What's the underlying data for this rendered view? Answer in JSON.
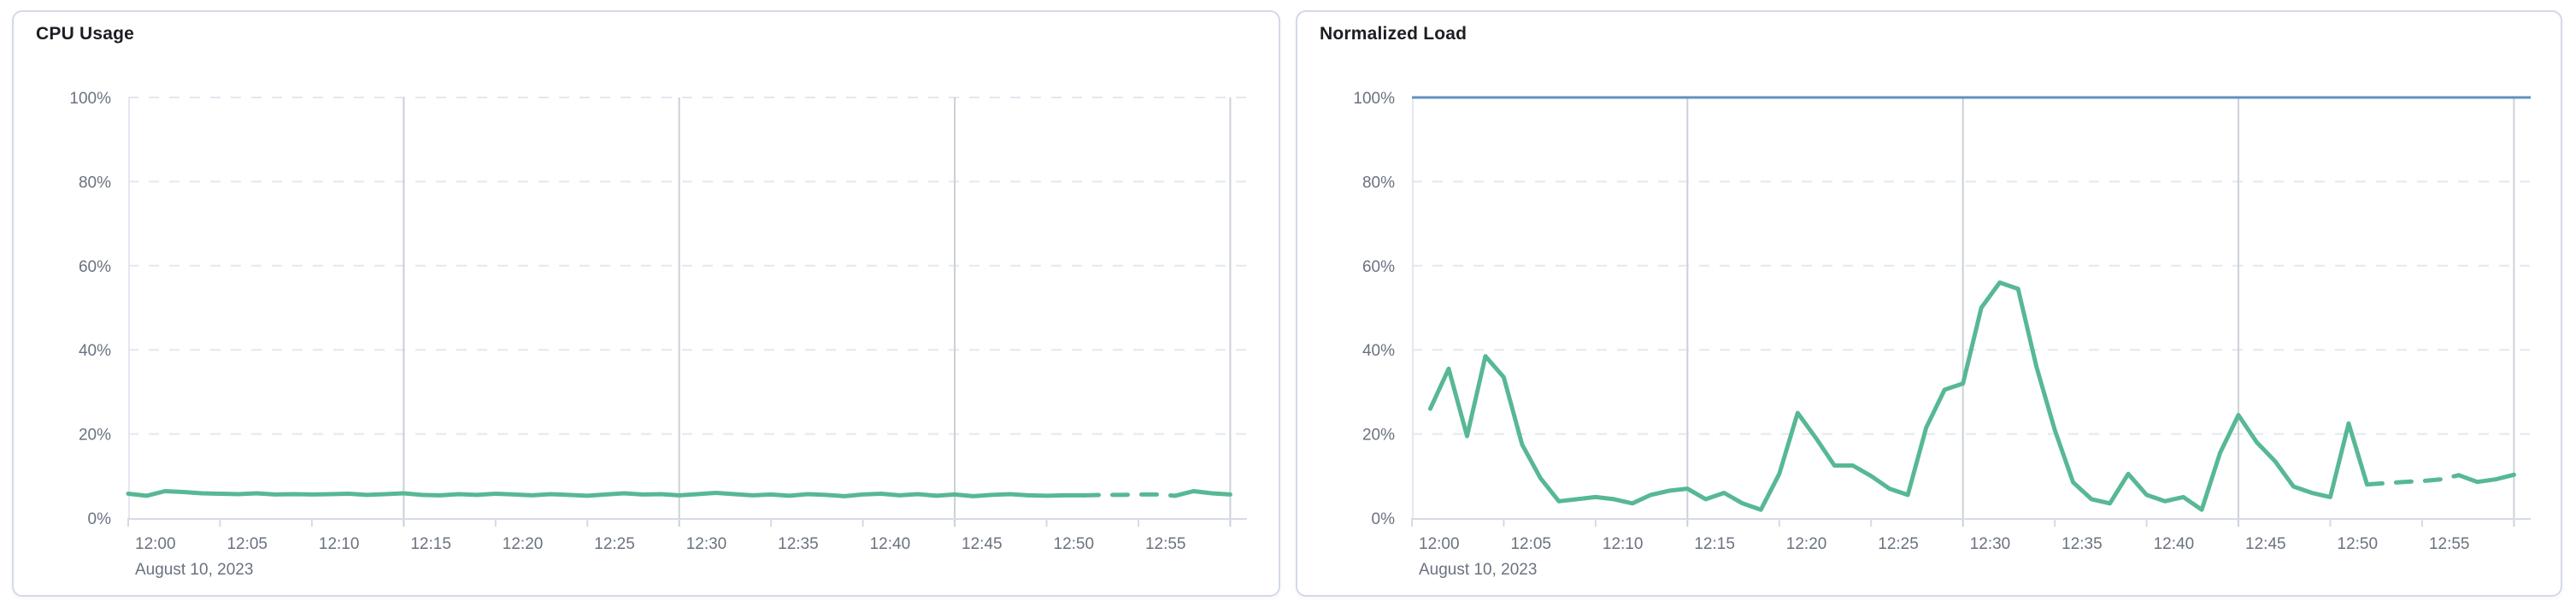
{
  "colors": {
    "page_bg": "#FFFFFF",
    "panel_border": "#D3DAE6",
    "title_text": "#1D1E24",
    "axis_text": "#6A7280",
    "axis_line": "#D6DAE3",
    "grid_light": "#E3E7F1",
    "grid_dark": "#CBD0D9",
    "series_green": "#57B894",
    "threshold_blue": "#6092C0"
  },
  "chart_data": [
    {
      "type": "line",
      "title": "CPU Usage",
      "x": {
        "start": "12:00",
        "end": "13:00",
        "tick_interval_minutes": 5,
        "tick_labels": [
          "12:00",
          "12:05",
          "12:10",
          "12:15",
          "12:20",
          "12:25",
          "12:30",
          "12:35",
          "12:40",
          "12:45",
          "12:50",
          "12:55"
        ],
        "secondary_label": "August 10, 2023",
        "major_gridline_minutes": [
          15,
          30,
          45,
          60
        ]
      },
      "y": {
        "min": 0,
        "max": 100,
        "tick_labels": [
          "0%",
          "20%",
          "40%",
          "60%",
          "80%",
          "100%"
        ],
        "gridlines_percent": [
          20,
          40,
          60,
          80,
          100
        ],
        "grid_style": "dashed"
      },
      "threshold_line": null,
      "series": [
        {
          "name": "CPU usage (%)",
          "color": "#57B894",
          "start_minute": 0,
          "dashed_segment_minutes": [
            52,
            57
          ],
          "values": [
            5.8,
            5.3,
            6.4,
            6.2,
            5.9,
            5.8,
            5.7,
            5.9,
            5.6,
            5.7,
            5.6,
            5.7,
            5.8,
            5.5,
            5.7,
            5.9,
            5.5,
            5.4,
            5.7,
            5.5,
            5.8,
            5.6,
            5.4,
            5.7,
            5.5,
            5.3,
            5.6,
            5.9,
            5.6,
            5.7,
            5.4,
            5.7,
            6.0,
            5.7,
            5.4,
            5.6,
            5.3,
            5.7,
            5.5,
            5.2,
            5.6,
            5.8,
            5.4,
            5.7,
            5.3,
            5.6,
            5.2,
            5.5,
            5.7,
            5.4,
            5.3,
            5.4,
            5.4,
            5.5,
            5.5,
            5.6,
            5.6,
            5.3,
            6.4,
            5.9,
            5.6
          ]
        }
      ]
    },
    {
      "type": "line",
      "title": "Normalized Load",
      "x": {
        "start": "12:00",
        "end": "13:00",
        "tick_interval_minutes": 5,
        "tick_labels": [
          "12:00",
          "12:05",
          "12:10",
          "12:15",
          "12:20",
          "12:25",
          "12:30",
          "12:35",
          "12:40",
          "12:45",
          "12:50",
          "12:55"
        ],
        "secondary_label": "August 10, 2023",
        "major_gridline_minutes": [
          15,
          30,
          45,
          60
        ]
      },
      "y": {
        "min": 0,
        "max": 100,
        "tick_labels": [
          "0%",
          "20%",
          "40%",
          "60%",
          "80%",
          "100%"
        ],
        "gridlines_percent": [
          20,
          40,
          60,
          80
        ],
        "grid_style": "dashed"
      },
      "threshold_line": {
        "value_percent": 100,
        "color": "#6092C0"
      },
      "series": [
        {
          "name": "Normalized load (%)",
          "color": "#57B894",
          "start_minute": 1,
          "dashed_segment_minutes": [
            52,
            57
          ],
          "values": [
            26,
            35.5,
            19.5,
            38.5,
            33.5,
            17.5,
            9.5,
            4,
            4.5,
            5,
            4.5,
            3.5,
            5.5,
            6.5,
            7,
            4.5,
            6,
            3.5,
            2,
            10.5,
            25,
            19,
            12.5,
            12.5,
            10,
            7,
            5.5,
            21.5,
            30.5,
            32,
            50,
            56,
            54.5,
            36,
            21,
            8.5,
            4.5,
            3.5,
            10.5,
            5.5,
            4,
            5,
            2,
            15.5,
            24.5,
            18,
            13.5,
            7.5,
            6,
            5,
            22.5,
            8,
            8.3,
            8.6,
            8.8,
            9.2,
            10.2,
            8.6,
            9.2,
            10.3
          ]
        }
      ]
    }
  ]
}
